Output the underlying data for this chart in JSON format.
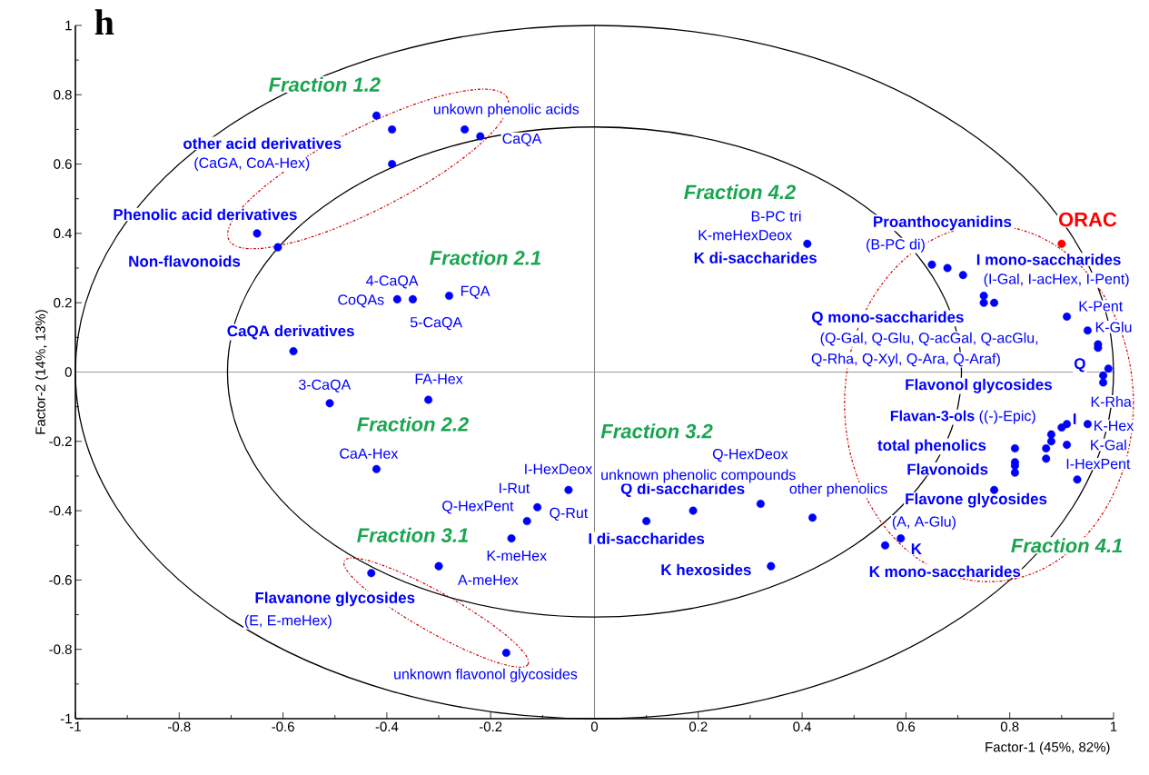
{
  "chart_data": {
    "type": "scatter",
    "title": "h",
    "xlabel": "Factor-1 (45%, 82%)",
    "ylabel": "Factor-2 (14%, 13%)",
    "xlim": [
      -1,
      1
    ],
    "ylim": [
      -1,
      1
    ],
    "xticks": [
      -1,
      -0.8,
      -0.6,
      -0.4,
      -0.2,
      0,
      0.2,
      0.4,
      0.6,
      0.8,
      1
    ],
    "yticks": [
      -1,
      -0.8,
      -0.6,
      -0.4,
      -0.2,
      0,
      0.2,
      0.4,
      0.6,
      0.8,
      1
    ],
    "marker": "circle",
    "x": [
      -0.42,
      -0.39,
      -0.39,
      -0.25,
      -0.22,
      -0.65,
      -0.61,
      -0.28,
      -0.35,
      -0.38,
      -0.58,
      -0.51,
      -0.32,
      -0.42,
      -0.43,
      -0.3,
      -0.17,
      -0.16,
      -0.13,
      -0.11,
      -0.05,
      0.1,
      0.19,
      0.32,
      0.42,
      0.34,
      0.41,
      0.65,
      0.68,
      0.71,
      0.75,
      0.75,
      0.77,
      0.9,
      0.91,
      0.95,
      0.97,
      0.97,
      0.99,
      0.98,
      0.98,
      0.91,
      0.9,
      0.95,
      0.88,
      0.88,
      0.87,
      0.91,
      0.87,
      0.93,
      0.81,
      0.81,
      0.81,
      0.81,
      0.77,
      0.56,
      0.59
    ],
    "values": [
      0.74,
      0.7,
      0.6,
      0.7,
      0.68,
      0.4,
      0.36,
      0.22,
      0.21,
      0.21,
      0.06,
      -0.09,
      -0.08,
      -0.28,
      -0.58,
      -0.56,
      -0.81,
      -0.48,
      -0.43,
      -0.39,
      -0.34,
      -0.43,
      -0.4,
      -0.38,
      -0.42,
      -0.56,
      0.37,
      0.31,
      0.3,
      0.28,
      0.22,
      0.2,
      0.2,
      0.37,
      0.16,
      0.12,
      0.08,
      0.07,
      0.01,
      -0.01,
      -0.03,
      -0.15,
      -0.16,
      -0.15,
      -0.18,
      -0.2,
      -0.22,
      -0.21,
      -0.25,
      -0.31,
      -0.22,
      -0.26,
      -0.27,
      -0.29,
      -0.34,
      -0.5,
      -0.48
    ],
    "colors": [
      "#0000ff",
      "#0000ff",
      "#0000ff",
      "#0000ff",
      "#0000ff",
      "#0000ff",
      "#0000ff",
      "#0000ff",
      "#0000ff",
      "#0000ff",
      "#0000ff",
      "#0000ff",
      "#0000ff",
      "#0000ff",
      "#0000ff",
      "#0000ff",
      "#0000ff",
      "#0000ff",
      "#0000ff",
      "#0000ff",
      "#0000ff",
      "#0000ff",
      "#0000ff",
      "#0000ff",
      "#0000ff",
      "#0000ff",
      "#0000ff",
      "#0000ff",
      "#0000ff",
      "#0000ff",
      "#0000ff",
      "#0000ff",
      "#0000ff",
      "#ff0000",
      "#0000ff",
      "#0000ff",
      "#0000ff",
      "#0000ff",
      "#0000ff",
      "#0000ff",
      "#0000ff",
      "#0000ff",
      "#0000ff",
      "#0000ff",
      "#0000ff",
      "#0000ff",
      "#0000ff",
      "#0000ff",
      "#0000ff",
      "#0000ff",
      "#0000ff",
      "#0000ff",
      "#0000ff",
      "#0000ff",
      "#0000ff",
      "#0000ff",
      "#0000ff"
    ],
    "ref_lines": [
      {
        "axis": "x",
        "value": 0,
        "color": "#808080"
      },
      {
        "axis": "y",
        "value": 0,
        "color": "#999999"
      }
    ],
    "annotations": [
      "Fraction 1.2",
      "Fraction 2.1",
      "Fraction 4.2",
      "Fraction 2.2",
      "Fraction 3.2",
      "Fraction 3.1",
      "Fraction 4.1",
      "ORAC",
      "other acid derivatives",
      "Phenolic acid derivatives",
      "Non-flavonoids",
      "CaQA derivatives",
      "Flavanone glycosides",
      "Proanthocyanidins",
      "I mono-saccharides",
      "Q mono-saccharides",
      "Q",
      "Flavonol glycosides",
      "total phenolics",
      "Flavonoids",
      "Flavone glycosides",
      "K",
      "K mono-saccharides",
      "K di-saccharides",
      "I",
      "I di-saccharides",
      "K hexosides",
      "Q di-saccharides",
      "(CaGA, CoA-Hex)",
      "(E, E-meHex)",
      "unknown flavonol glycosides",
      "(B-PC di)",
      "(I-Gal, I-acHex, I-Pent)",
      "(Q-Gal, Q-Glu, Q-acGal, Q-acGlu,",
      "Q-Rha, Q-Xyl, Q-Ara, Q-Araf)",
      "**Flavan-3-ols** ((-)-Epic)",
      "(A, A-Glu)",
      "K-meHexDeox",
      "B-PC tri",
      "K-Rha",
      "K-Hex",
      "K-Gal",
      "I-HexPent",
      "K-Pent",
      "K-Glu",
      "unkown phenolic acids",
      "CaQA",
      "4-CaQA",
      "CoQAs",
      "5-CaQA",
      "FQA",
      "3-CaQA",
      "FA-Hex",
      "CaA-Hex",
      "I-HexDeox",
      "I-Rut",
      "Q-HexPent",
      "Q-Rut",
      "K-meHex",
      "A-meHex",
      "Q-HexDeox",
      "unknown phenolic compounds",
      "other phenolics"
    ]
  }
}
